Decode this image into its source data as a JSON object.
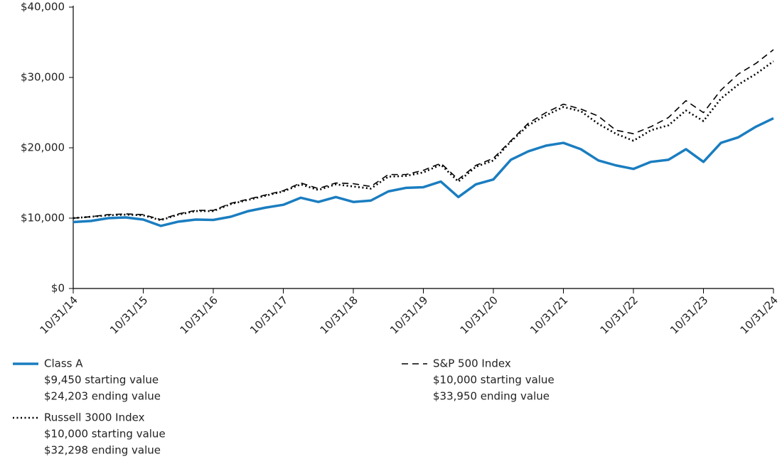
{
  "chart_data": {
    "type": "line",
    "categories": [
      "10/31/14",
      null,
      null,
      null,
      "10/31/15",
      null,
      null,
      null,
      "10/31/16",
      null,
      null,
      null,
      "10/31/17",
      null,
      null,
      null,
      "10/31/18",
      null,
      null,
      null,
      "10/31/19",
      null,
      null,
      null,
      "10/31/20",
      null,
      null,
      null,
      "10/31/21",
      null,
      null,
      null,
      "10/31/22",
      null,
      null,
      null,
      "10/31/23",
      null,
      null,
      null,
      "10/31/24"
    ],
    "series": [
      {
        "name": "Class A",
        "color": "#1a7dc0",
        "dash": "solid",
        "legend_lines": [
          "$9,450 starting value",
          "$24,203 ending value"
        ],
        "values": [
          9450,
          9600,
          10000,
          10100,
          9800,
          8900,
          9500,
          9800,
          9750,
          10200,
          11000,
          11500,
          11900,
          12900,
          12300,
          13000,
          12300,
          12500,
          13800,
          14300,
          14400,
          15200,
          13000,
          14800,
          15500,
          18300,
          19500,
          20300,
          20700,
          19800,
          18200,
          17500,
          17000,
          18000,
          18300,
          19800,
          18000,
          20700,
          21500,
          23000,
          24203
        ]
      },
      {
        "name": "Russell 3000 Index",
        "color": "#000000",
        "dash": "dotted",
        "legend_lines": [
          "$10,000 starting value",
          "$32,298 ending value"
        ],
        "values": [
          10000,
          10200,
          10400,
          10500,
          10400,
          9700,
          10500,
          11000,
          11000,
          12000,
          12600,
          13200,
          13800,
          14800,
          14000,
          14800,
          14500,
          14200,
          15900,
          16000,
          16500,
          17600,
          15200,
          17300,
          18200,
          20900,
          23200,
          24600,
          25800,
          25200,
          23400,
          22000,
          21000,
          22500,
          23200,
          25300,
          23800,
          27000,
          29000,
          30500,
          32298
        ]
      },
      {
        "name": "S&P 500 Index",
        "color": "#000000",
        "dash": "dashed",
        "legend_lines": [
          "$10,000 starting value",
          "$33,950 ending value"
        ],
        "values": [
          10000,
          10200,
          10500,
          10600,
          10500,
          9800,
          10600,
          11100,
          11100,
          12100,
          12700,
          13300,
          13900,
          15000,
          14200,
          15000,
          14900,
          14500,
          16200,
          16200,
          16800,
          17800,
          15500,
          17500,
          18500,
          21000,
          23500,
          25000,
          26200,
          25500,
          24500,
          22500,
          22000,
          23000,
          24300,
          26700,
          25000,
          28200,
          30500,
          32000,
          33950
        ]
      }
    ],
    "ylim": [
      0,
      40000
    ],
    "yticks": [
      {
        "value": 0,
        "label": "$0"
      },
      {
        "value": 10000,
        "label": "$10,000"
      },
      {
        "value": 20000,
        "label": "$20,000"
      },
      {
        "value": 30000,
        "label": "$30,000"
      },
      {
        "value": 40000,
        "label": "$40,000"
      }
    ],
    "grid": false
  }
}
